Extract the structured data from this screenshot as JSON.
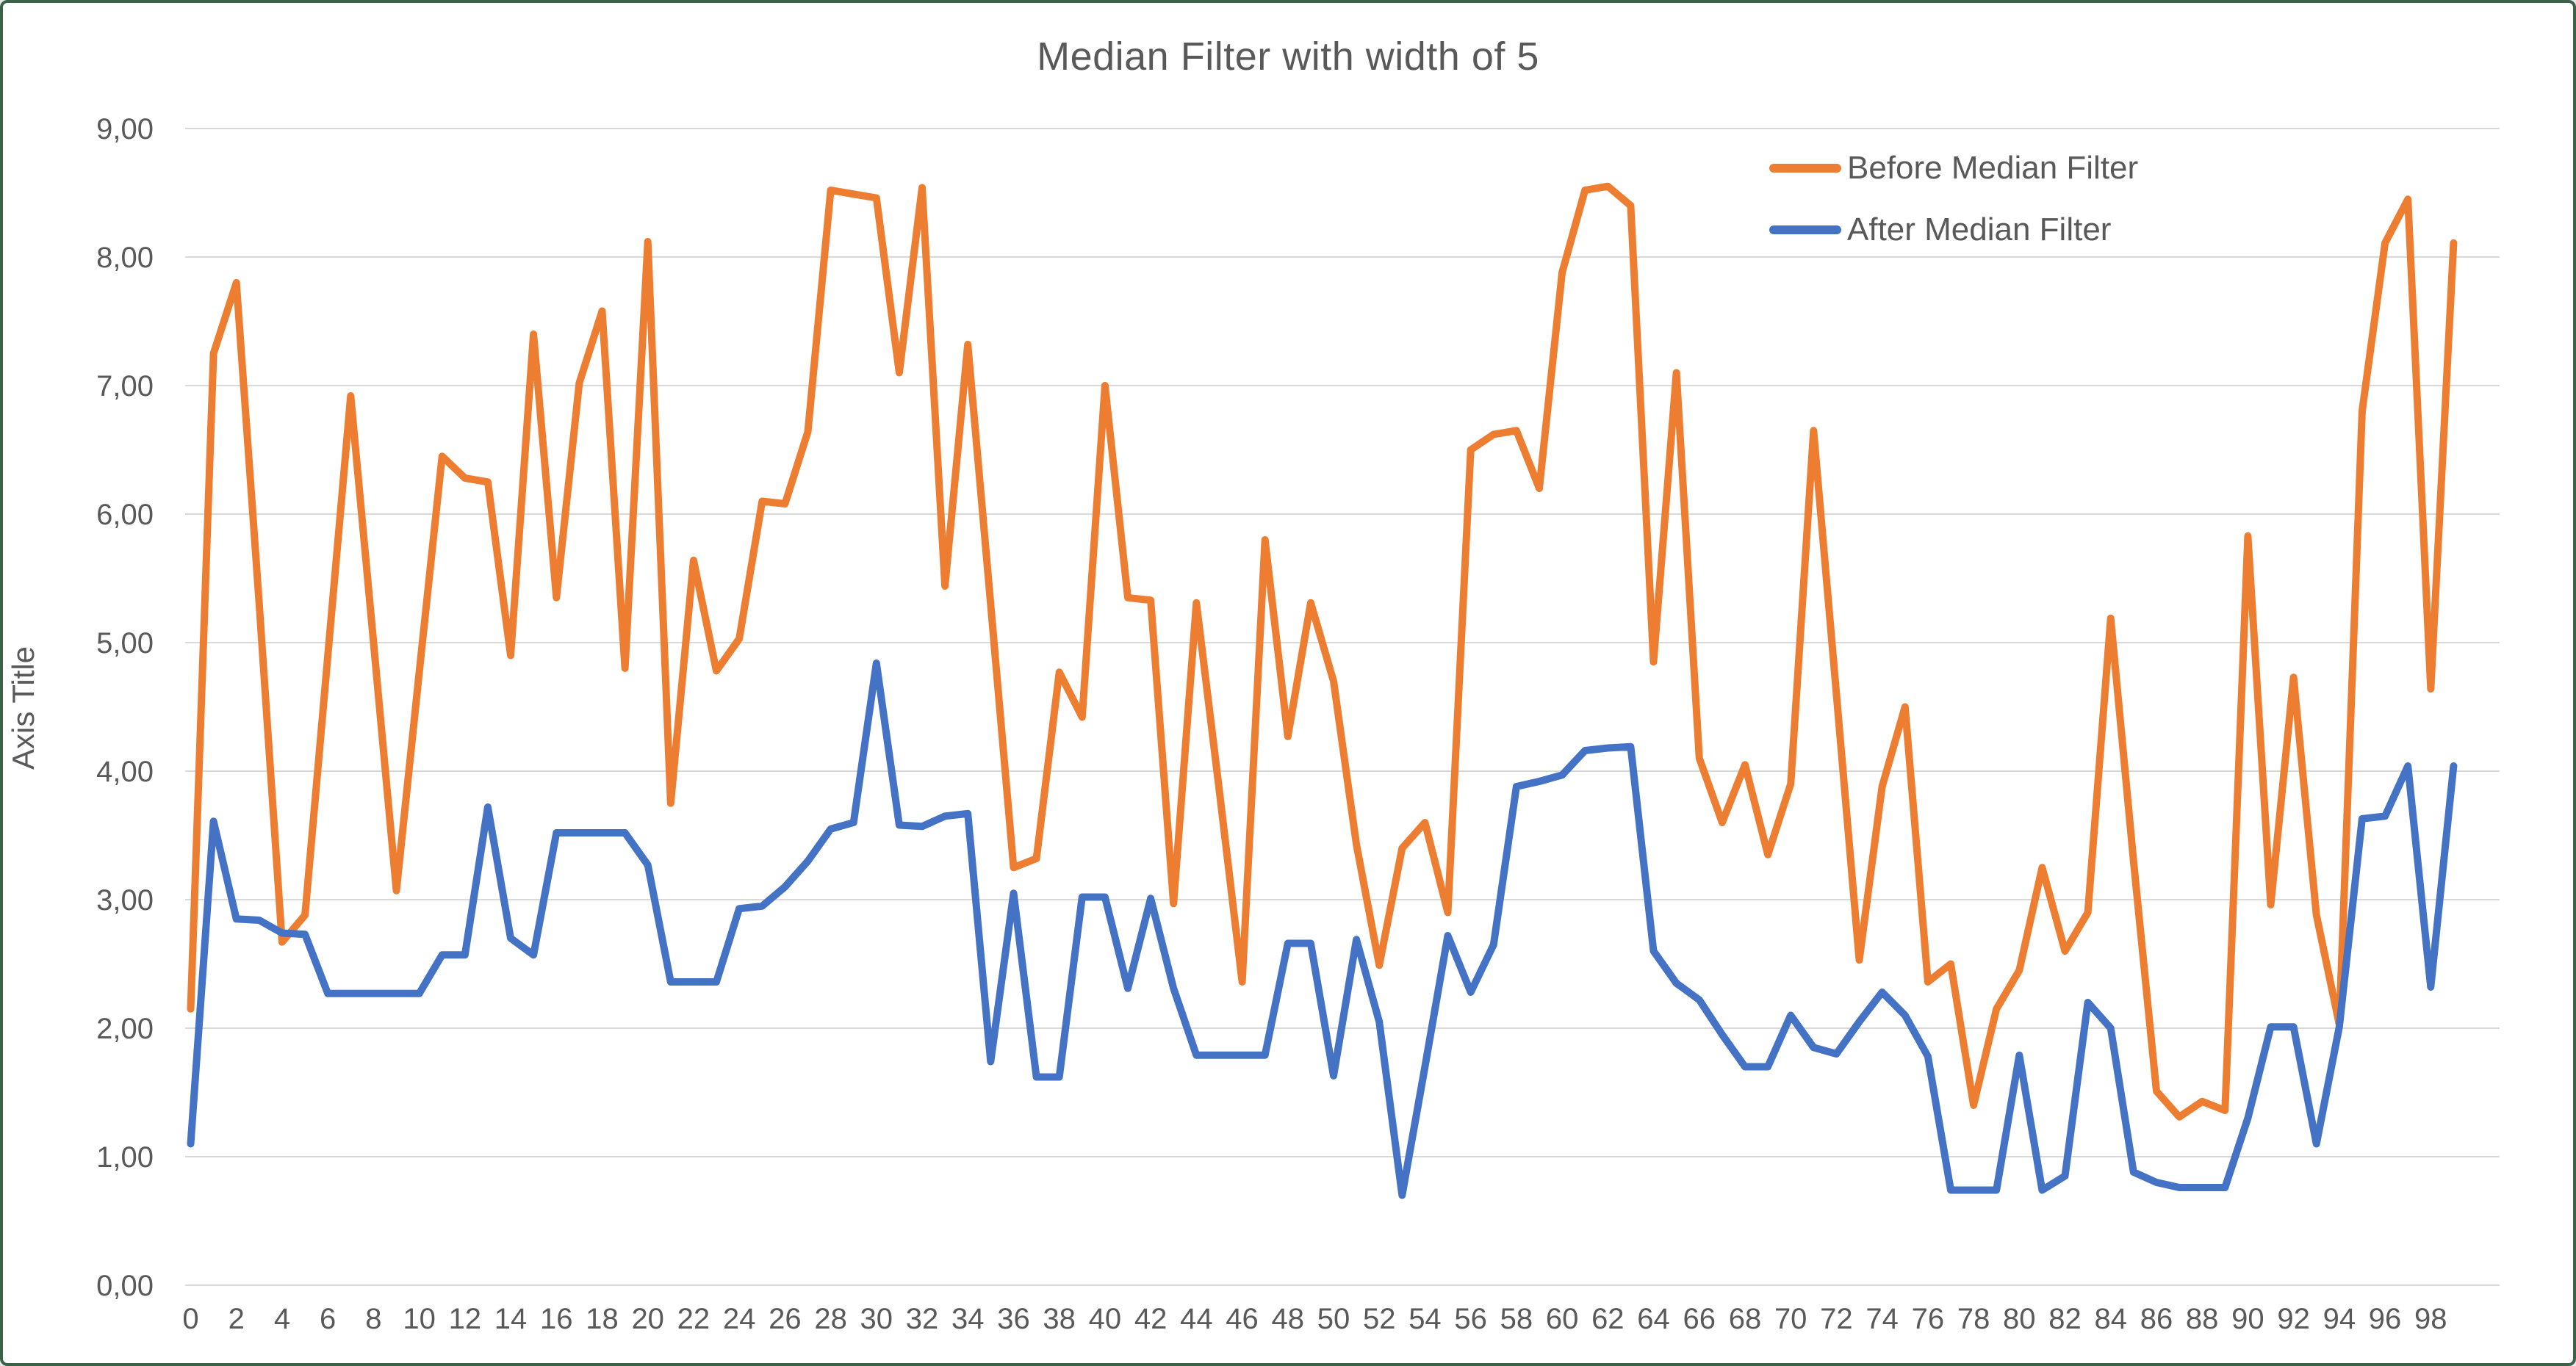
{
  "chart_data": {
    "type": "line",
    "title": "Median Filter with width of 5",
    "xlabel": "",
    "ylabel": "Axis Title",
    "ylim": [
      0,
      9
    ],
    "grid": "horizontal",
    "legend_position": "top-right",
    "decimal_separator": ",",
    "y_ticks": [
      "0,00",
      "1,00",
      "2,00",
      "3,00",
      "4,00",
      "5,00",
      "6,00",
      "7,00",
      "8,00",
      "9,00"
    ],
    "x_ticks": [
      0,
      2,
      4,
      6,
      8,
      10,
      12,
      14,
      16,
      18,
      20,
      22,
      24,
      26,
      28,
      30,
      32,
      34,
      36,
      38,
      40,
      42,
      44,
      46,
      48,
      50,
      52,
      54,
      56,
      58,
      60,
      62,
      64,
      66,
      68,
      70,
      72,
      74,
      76,
      78,
      80,
      82,
      84,
      86,
      88,
      90,
      92,
      94,
      96,
      98
    ],
    "x": [
      0,
      1,
      2,
      3,
      4,
      5,
      6,
      7,
      8,
      9,
      10,
      11,
      12,
      13,
      14,
      15,
      16,
      17,
      18,
      19,
      20,
      21,
      22,
      23,
      24,
      25,
      26,
      27,
      28,
      29,
      30,
      31,
      32,
      33,
      34,
      35,
      36,
      37,
      38,
      39,
      40,
      41,
      42,
      43,
      44,
      45,
      46,
      47,
      48,
      49,
      50,
      51,
      52,
      53,
      54,
      55,
      56,
      57,
      58,
      59,
      60,
      61,
      62,
      63,
      64,
      65,
      66,
      67,
      68,
      69,
      70,
      71,
      72,
      73,
      74,
      75,
      76,
      77,
      78,
      79,
      80,
      81,
      82,
      83,
      84,
      85,
      86,
      87,
      88,
      89,
      90,
      91,
      92,
      93,
      94,
      95,
      96,
      97,
      98,
      99
    ],
    "series": [
      {
        "name": "Before Median Filter",
        "color": "#ED7D31",
        "values": [
          2.15,
          7.25,
          7.8,
          5.3,
          2.67,
          2.88,
          4.9,
          6.92,
          5.0,
          3.07,
          4.77,
          6.45,
          6.28,
          6.25,
          4.9,
          7.4,
          5.35,
          7.02,
          7.58,
          4.8,
          8.12,
          3.75,
          5.64,
          4.78,
          5.03,
          6.1,
          6.08,
          6.64,
          8.52,
          8.49,
          8.46,
          7.1,
          8.54,
          5.44,
          7.32,
          5.3,
          3.25,
          3.32,
          4.77,
          4.42,
          7.0,
          5.35,
          5.33,
          2.97,
          5.31,
          3.85,
          2.36,
          5.8,
          4.27,
          5.31,
          4.7,
          3.43,
          2.49,
          3.4,
          3.6,
          2.9,
          6.5,
          6.62,
          6.65,
          6.2,
          7.88,
          8.52,
          8.55,
          8.4,
          4.85,
          7.1,
          4.1,
          3.6,
          4.05,
          3.35,
          3.9,
          6.65,
          4.6,
          2.53,
          3.88,
          4.5,
          2.36,
          2.5,
          1.4,
          2.15,
          2.45,
          3.25,
          2.6,
          2.9,
          5.19,
          3.3,
          1.51,
          1.31,
          1.43,
          1.36,
          5.83,
          2.96,
          4.73,
          2.88,
          2.03,
          6.8,
          8.11,
          8.45,
          4.64,
          8.11
        ]
      },
      {
        "name": "After Median Filter",
        "color": "#4472C4",
        "values": [
          1.1,
          3.61,
          2.85,
          2.84,
          2.74,
          2.73,
          2.27,
          2.27,
          2.27,
          2.27,
          2.27,
          2.57,
          2.57,
          3.72,
          2.7,
          2.57,
          3.52,
          3.52,
          3.52,
          3.52,
          3.27,
          2.36,
          2.36,
          2.36,
          2.93,
          2.95,
          3.1,
          3.3,
          3.55,
          3.6,
          4.84,
          3.58,
          3.57,
          3.65,
          3.67,
          1.74,
          3.05,
          1.62,
          1.62,
          3.02,
          3.02,
          2.31,
          3.01,
          2.31,
          1.79,
          1.79,
          1.79,
          1.79,
          2.66,
          2.66,
          1.63,
          2.69,
          2.05,
          0.7,
          1.7,
          2.72,
          2.28,
          2.65,
          3.88,
          3.92,
          3.97,
          4.16,
          4.18,
          4.19,
          2.6,
          2.35,
          2.22,
          1.95,
          1.7,
          1.7,
          2.1,
          1.85,
          1.8,
          2.05,
          2.28,
          2.1,
          1.78,
          0.74,
          0.74,
          0.74,
          1.79,
          0.74,
          0.85,
          2.2,
          2.0,
          0.88,
          0.8,
          0.76,
          0.76,
          0.76,
          1.3,
          2.01,
          2.01,
          1.1,
          2.01,
          3.63,
          3.65,
          4.04,
          2.32,
          4.04
        ]
      }
    ],
    "colors": {
      "grid": "#D9D9D9",
      "text": "#595959",
      "background": "#FFFFFF",
      "frame_border": "#3A6249"
    }
  }
}
